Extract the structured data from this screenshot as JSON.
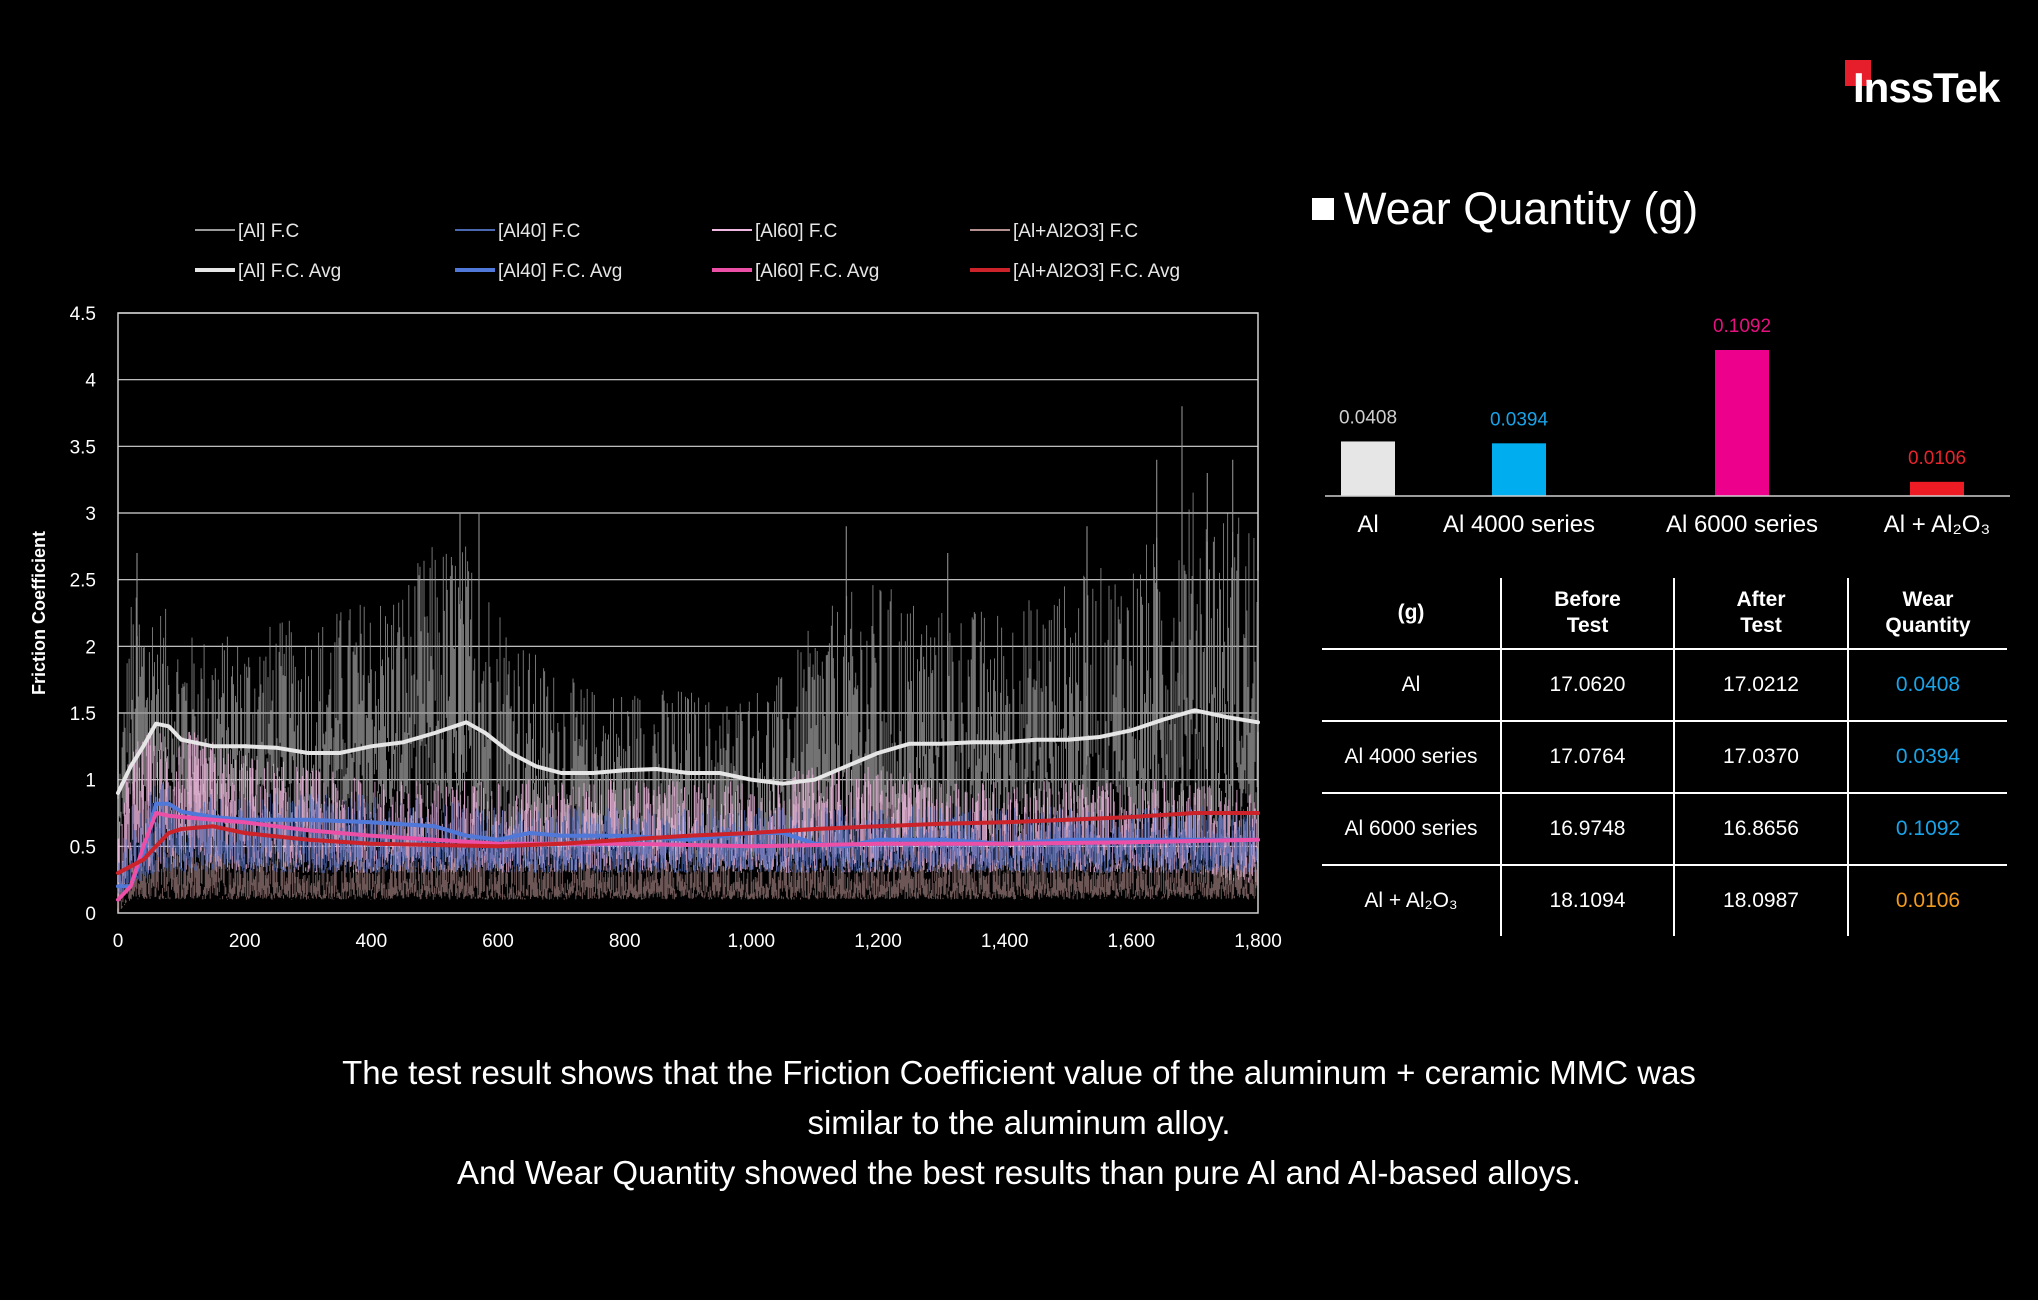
{
  "logo": {
    "text": "InssTek",
    "color": "#e61e2b"
  },
  "chart_data": [
    {
      "type": "line",
      "title": "",
      "xlabel": "",
      "ylabel": "Friction Coefficient",
      "xlim": [
        0,
        1800
      ],
      "ylim": [
        0,
        4.5
      ],
      "x_ticks": [
        "0",
        "200",
        "400",
        "600",
        "800",
        "1,000",
        "1,200",
        "1,400",
        "1,600",
        "1,800"
      ],
      "y_ticks": [
        "0",
        "0.5",
        "1",
        "1.5",
        "2",
        "2.5",
        "3",
        "3.5",
        "4",
        "4.5"
      ],
      "grid": true,
      "legend_position": "top",
      "series": [
        {
          "name": "[Al] F.C",
          "kind": "raw",
          "color": "#9a9a9a",
          "x": [
            0,
            20,
            60,
            100,
            150,
            200,
            250,
            300,
            350,
            400,
            450,
            500,
            550,
            600,
            650,
            700,
            750,
            800,
            850,
            900,
            950,
            1000,
            1050,
            1100,
            1150,
            1200,
            1250,
            1300,
            1350,
            1400,
            1450,
            1500,
            1550,
            1600,
            1650,
            1700,
            1750,
            1800
          ],
          "low": [
            0.5,
            0.8,
            0.8,
            0.7,
            0.7,
            0.7,
            0.7,
            0.6,
            0.7,
            0.7,
            0.7,
            0.7,
            0.7,
            0.5,
            0.5,
            0.4,
            0.4,
            0.4,
            0.4,
            0.4,
            0.4,
            0.4,
            0.4,
            0.4,
            0.4,
            0.5,
            0.5,
            0.5,
            0.5,
            0.6,
            0.6,
            0.6,
            0.6,
            0.6,
            0.6,
            0.6,
            0.6,
            0.6
          ],
          "high": [
            1.0,
            2.4,
            2.4,
            2.1,
            2.1,
            2.1,
            2.2,
            2.2,
            2.3,
            2.4,
            2.5,
            2.8,
            2.8,
            2.4,
            2.0,
            1.8,
            1.7,
            1.7,
            1.7,
            1.7,
            1.6,
            1.7,
            1.8,
            2.2,
            2.4,
            2.5,
            2.4,
            2.3,
            2.3,
            2.3,
            2.4,
            2.5,
            2.6,
            2.7,
            2.9,
            3.2,
            3.1,
            3.0
          ]
        },
        {
          "name": "[Al40] F.C",
          "kind": "raw",
          "color": "#4a67b0",
          "x": [
            0,
            20,
            60,
            100,
            200,
            300,
            400,
            600,
            800,
            1000,
            1200,
            1400,
            1600,
            1800
          ],
          "low": [
            0.1,
            0.2,
            0.3,
            0.3,
            0.3,
            0.3,
            0.3,
            0.3,
            0.3,
            0.3,
            0.3,
            0.3,
            0.3,
            0.3
          ],
          "high": [
            0.4,
            0.8,
            1.0,
            0.9,
            0.9,
            0.9,
            0.9,
            0.8,
            0.8,
            0.8,
            0.8,
            0.8,
            0.8,
            0.8
          ]
        },
        {
          "name": "[Al60] F.C",
          "kind": "raw",
          "color": "#f0b8e0",
          "x": [
            0,
            20,
            60,
            100,
            150,
            200,
            300,
            400,
            500,
            600,
            700,
            800,
            900,
            1000,
            1100,
            1200,
            1300,
            1400,
            1500,
            1600,
            1700,
            1800
          ],
          "low": [
            0.1,
            0.3,
            0.3,
            0.3,
            0.3,
            0.3,
            0.3,
            0.3,
            0.3,
            0.3,
            0.3,
            0.3,
            0.3,
            0.3,
            0.3,
            0.3,
            0.3,
            0.3,
            0.3,
            0.3,
            0.3,
            0.2
          ],
          "high": [
            0.6,
            1.3,
            1.4,
            1.4,
            1.3,
            1.2,
            1.1,
            1.0,
            1.0,
            1.0,
            1.0,
            1.0,
            1.0,
            1.0,
            1.1,
            1.1,
            1.0,
            1.0,
            1.0,
            1.0,
            1.0,
            0.9
          ]
        },
        {
          "name": "[Al+Al2O3]  F.C",
          "kind": "raw",
          "color": "#b59090",
          "x": [
            0,
            20,
            60,
            100,
            150,
            200,
            300,
            400,
            600,
            800,
            1000,
            1200,
            1400,
            1600,
            1800
          ],
          "low": [
            0.0,
            0.1,
            0.1,
            0.1,
            0.1,
            0.1,
            0.1,
            0.1,
            0.1,
            0.1,
            0.1,
            0.1,
            0.1,
            0.1,
            0.1
          ],
          "high": [
            0.3,
            0.4,
            0.5,
            0.5,
            0.5,
            0.4,
            0.4,
            0.4,
            0.4,
            0.4,
            0.4,
            0.4,
            0.4,
            0.4,
            0.4
          ]
        },
        {
          "name": "[Al]  F.C. Avg",
          "kind": "avg",
          "color": "#e6e6e6",
          "x": [
            0,
            20,
            40,
            60,
            80,
            100,
            150,
            200,
            250,
            300,
            350,
            400,
            450,
            500,
            550,
            580,
            620,
            660,
            700,
            750,
            800,
            850,
            900,
            950,
            1000,
            1050,
            1100,
            1150,
            1200,
            1250,
            1300,
            1350,
            1400,
            1450,
            1500,
            1550,
            1600,
            1650,
            1700,
            1750,
            1800
          ],
          "y": [
            0.9,
            1.1,
            1.25,
            1.42,
            1.4,
            1.3,
            1.25,
            1.25,
            1.24,
            1.2,
            1.2,
            1.25,
            1.28,
            1.35,
            1.43,
            1.35,
            1.2,
            1.1,
            1.05,
            1.05,
            1.07,
            1.08,
            1.05,
            1.05,
            1.0,
            0.97,
            1.0,
            1.1,
            1.2,
            1.27,
            1.27,
            1.28,
            1.28,
            1.3,
            1.3,
            1.32,
            1.37,
            1.45,
            1.52,
            1.47,
            1.43
          ]
        },
        {
          "name": "[Al40]  F.C. Avg",
          "kind": "avg",
          "color": "#4f78d8",
          "x": [
            0,
            20,
            40,
            60,
            80,
            100,
            150,
            200,
            300,
            400,
            500,
            550,
            600,
            650,
            700,
            800,
            900,
            1000,
            1050,
            1100,
            1150,
            1200,
            1300,
            1400,
            1500,
            1600,
            1700,
            1800
          ],
          "y": [
            0.2,
            0.2,
            0.45,
            0.82,
            0.82,
            0.76,
            0.72,
            0.7,
            0.7,
            0.68,
            0.65,
            0.58,
            0.55,
            0.6,
            0.58,
            0.58,
            0.55,
            0.6,
            0.6,
            0.52,
            0.5,
            0.55,
            0.55,
            0.52,
            0.55,
            0.55,
            0.55,
            0.55
          ]
        },
        {
          "name": "[Al60]  F.C. Avg",
          "kind": "avg",
          "color": "#ec4fa6",
          "x": [
            0,
            20,
            40,
            60,
            80,
            100,
            150,
            200,
            300,
            400,
            500,
            600,
            800,
            1000,
            1200,
            1400,
            1600,
            1800
          ],
          "y": [
            0.1,
            0.2,
            0.5,
            0.75,
            0.73,
            0.72,
            0.7,
            0.68,
            0.62,
            0.58,
            0.55,
            0.52,
            0.52,
            0.5,
            0.52,
            0.52,
            0.53,
            0.55
          ]
        },
        {
          "name": "[Al+Al2O3] F.C. Avg",
          "kind": "avg",
          "color": "#cc2229",
          "x": [
            0,
            20,
            40,
            60,
            80,
            100,
            150,
            200,
            300,
            400,
            500,
            600,
            700,
            800,
            900,
            1000,
            1100,
            1200,
            1300,
            1400,
            1500,
            1600,
            1700,
            1800
          ],
          "y": [
            0.3,
            0.35,
            0.4,
            0.5,
            0.6,
            0.63,
            0.65,
            0.6,
            0.55,
            0.52,
            0.51,
            0.5,
            0.52,
            0.55,
            0.58,
            0.6,
            0.63,
            0.65,
            0.67,
            0.68,
            0.7,
            0.72,
            0.75,
            0.75
          ]
        }
      ]
    },
    {
      "type": "bar",
      "title": "Wear Quantity (g)",
      "categories": [
        "Al",
        "Al 4000 series",
        "Al 6000 series",
        "Al + Al₂O₃"
      ],
      "values": [
        0.0408,
        0.0394,
        0.1092,
        0.0106
      ],
      "value_labels": [
        "0.0408",
        "0.0394",
        "0.1092",
        "0.0106"
      ],
      "colors": [
        "#e6e6e6",
        "#00aeef",
        "#ec008c",
        "#ed1c24"
      ],
      "label_colors": [
        "#cfcfcf",
        "#1aa3e8",
        "#e4117f",
        "#e8242c"
      ],
      "ylim": [
        0,
        0.12
      ]
    }
  ],
  "wear_table": {
    "header": [
      "(g)",
      "Before\nTest",
      "After\nTest",
      "Wear\nQuantity"
    ],
    "rows": [
      {
        "label": "Al",
        "before": "17.0620",
        "after": "17.0212",
        "wear": "0.0408",
        "wear_color": "#1aa3e8"
      },
      {
        "label": "Al 4000 series",
        "before": "17.0764",
        "after": "17.0370",
        "wear": "0.0394",
        "wear_color": "#1aa3e8"
      },
      {
        "label": "Al 6000 series",
        "before": "16.9748",
        "after": "16.8656",
        "wear": "0.1092",
        "wear_color": "#1aa3e8"
      },
      {
        "label": "Al + Al₂O₃",
        "before": "18.1094",
        "after": "18.0987",
        "wear": "0.0106",
        "wear_color": "#f39a1f"
      }
    ]
  },
  "conclusion": [
    "The test result shows that the Friction Coefficient value of the aluminum + ceramic MMC was",
    "similar to the aluminum alloy.",
    "And Wear Quantity showed the best results than pure Al and Al-based alloys."
  ]
}
